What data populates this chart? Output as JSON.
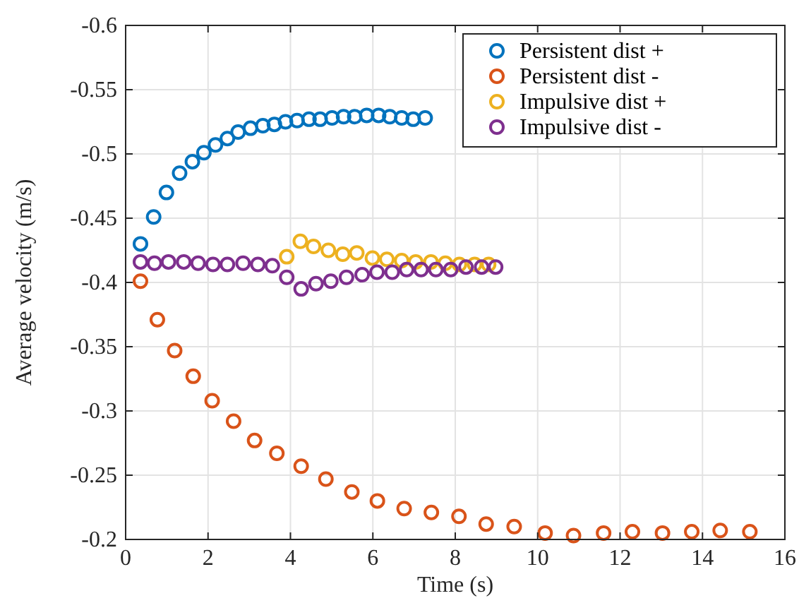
{
  "chart_data": {
    "type": "scatter",
    "xlabel": "Time (s)",
    "ylabel": "Average velocity (m/s)",
    "xlim": [
      0,
      16
    ],
    "xticks": [
      0,
      2,
      4,
      6,
      8,
      10,
      12,
      14,
      16
    ],
    "ylim": [
      -0.2,
      -0.6
    ],
    "yticks": [
      -0.6,
      -0.55,
      -0.5,
      -0.45,
      -0.4,
      -0.35,
      -0.3,
      -0.25,
      -0.2
    ],
    "grid": true,
    "legend": "top right",
    "marker": "circle",
    "series": [
      {
        "name": "Persistent dist +",
        "color": "#0072bd",
        "x": [
          0.36,
          0.68,
          0.99,
          1.31,
          1.62,
          1.9,
          2.18,
          2.47,
          2.73,
          3.03,
          3.33,
          3.61,
          3.88,
          4.16,
          4.45,
          4.72,
          5.01,
          5.29,
          5.56,
          5.85,
          6.14,
          6.41,
          6.7,
          6.98,
          7.27
        ],
        "values": [
          -0.43,
          -0.451,
          -0.47,
          -0.485,
          -0.494,
          -0.501,
          -0.507,
          -0.512,
          -0.517,
          -0.52,
          -0.522,
          -0.523,
          -0.525,
          -0.526,
          -0.527,
          -0.527,
          -0.528,
          -0.529,
          -0.529,
          -0.53,
          -0.53,
          -0.529,
          -0.528,
          -0.527,
          -0.528
        ]
      },
      {
        "name": "Persistent dist -",
        "color": "#d95319",
        "x": [
          0.36,
          0.77,
          1.19,
          1.64,
          2.1,
          2.62,
          3.13,
          3.67,
          4.26,
          4.86,
          5.49,
          6.11,
          6.76,
          7.42,
          8.09,
          8.75,
          9.43,
          10.18,
          10.87,
          11.6,
          12.3,
          13.03,
          13.74,
          14.43,
          15.15
        ],
        "values": [
          -0.401,
          -0.371,
          -0.347,
          -0.327,
          -0.308,
          -0.292,
          -0.277,
          -0.267,
          -0.257,
          -0.247,
          -0.237,
          -0.23,
          -0.224,
          -0.221,
          -0.218,
          -0.212,
          -0.21,
          -0.205,
          -0.203,
          -0.205,
          -0.206,
          -0.205,
          -0.206,
          -0.207,
          -0.206
        ]
      },
      {
        "name": "Impulsive dist +",
        "color": "#edb120",
        "x": [
          3.91,
          4.24,
          4.56,
          4.92,
          5.27,
          5.61,
          5.99,
          6.34,
          6.7,
          7.04,
          7.41,
          7.76,
          8.1,
          8.47,
          8.81
        ],
        "values": [
          -0.42,
          -0.432,
          -0.428,
          -0.425,
          -0.422,
          -0.423,
          -0.419,
          -0.418,
          -0.417,
          -0.416,
          -0.416,
          -0.415,
          -0.414,
          -0.414,
          -0.414
        ]
      },
      {
        "name": "Impulsive dist -",
        "color": "#7e2f8e",
        "x": [
          0.36,
          0.7,
          1.04,
          1.41,
          1.76,
          2.12,
          2.47,
          2.85,
          3.21,
          3.56,
          3.91,
          4.26,
          4.62,
          4.98,
          5.36,
          5.74,
          6.1,
          6.47,
          6.82,
          7.17,
          7.53,
          7.89,
          8.26,
          8.64,
          8.98
        ],
        "values": [
          -0.416,
          -0.415,
          -0.416,
          -0.416,
          -0.415,
          -0.414,
          -0.414,
          -0.415,
          -0.414,
          -0.413,
          -0.404,
          -0.395,
          -0.399,
          -0.401,
          -0.404,
          -0.406,
          -0.408,
          -0.408,
          -0.41,
          -0.41,
          -0.41,
          -0.41,
          -0.412,
          -0.412,
          -0.412
        ]
      }
    ]
  }
}
